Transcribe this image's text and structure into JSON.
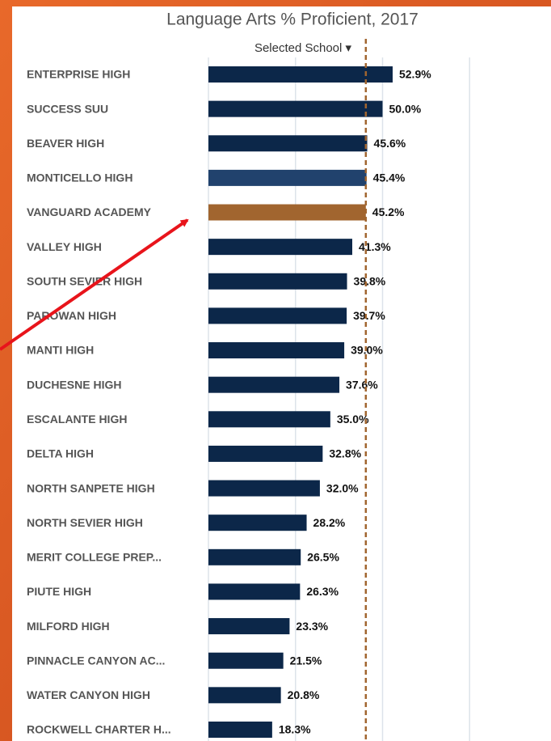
{
  "chart_data": {
    "type": "hbar",
    "title": "Language Arts % Proficient, 2017",
    "filter_label": "Selected School ▾",
    "categories": [
      "ENTERPRISE HIGH",
      "SUCCESS SUU",
      "BEAVER HIGH",
      "MONTICELLO HIGH",
      "VANGUARD ACADEMY",
      "VALLEY HIGH",
      "SOUTH SEVIER HIGH",
      "PAROWAN HIGH",
      "MANTI HIGH",
      "DUCHESNE HIGH",
      "ESCALANTE HIGH",
      "DELTA HIGH",
      "NORTH SANPETE HIGH",
      "NORTH SEVIER HIGH",
      "MERIT COLLEGE PREP...",
      "PIUTE HIGH",
      "MILFORD HIGH",
      "PINNACLE CANYON AC...",
      "WATER CANYON HIGH",
      "ROCKWELL CHARTER H..."
    ],
    "values": [
      52.9,
      50.0,
      45.6,
      45.4,
      45.2,
      41.3,
      39.8,
      39.7,
      39.0,
      37.6,
      35.0,
      32.8,
      32.0,
      28.2,
      26.5,
      26.3,
      23.3,
      21.5,
      20.8,
      18.3
    ],
    "value_labels": [
      "52.9%",
      "50.0%",
      "45.6%",
      "45.4%",
      "45.2%",
      "41.3%",
      "39.8%",
      "39.7%",
      "39.0%",
      "37.6%",
      "35.0%",
      "32.8%",
      "32.0%",
      "28.2%",
      "26.5%",
      "26.3%",
      "23.3%",
      "21.5%",
      "20.8%",
      "18.3%"
    ],
    "colors": [
      "#0c2749",
      "#0c2749",
      "#0c2749",
      "#21426d",
      "#a1652f",
      "#0c2749",
      "#0c2749",
      "#0c2749",
      "#0c2749",
      "#0c2749",
      "#0c2749",
      "#0c2749",
      "#0c2749",
      "#0c2749",
      "#0c2749",
      "#0c2749",
      "#0c2749",
      "#0c2749",
      "#0c2749",
      "#0c2749"
    ],
    "reference_line": 45.2,
    "reference_color": "#a1652f",
    "xlim": [
      0,
      100
    ],
    "xticks": [
      0,
      25,
      50,
      75
    ],
    "grid": true
  }
}
